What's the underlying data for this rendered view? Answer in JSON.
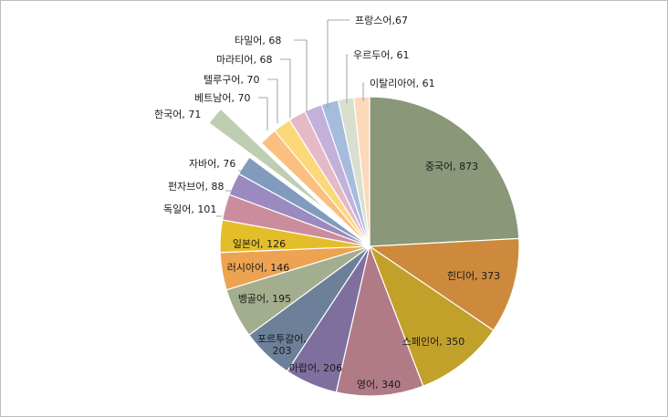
{
  "chart_data": {
    "type": "pie",
    "title": "",
    "slices": [
      {
        "label": "중국어, 873",
        "name": "중국어",
        "value": 873,
        "color": "#8a9778"
      },
      {
        "label": "힌디어, 373",
        "name": "힌디어",
        "value": 373,
        "color": "#cd8a3c"
      },
      {
        "label": "스페인어, 350",
        "name": "스페인어",
        "value": 350,
        "color": "#c2a12b"
      },
      {
        "label": "영어, 340",
        "name": "영어",
        "value": 340,
        "color": "#b07a87"
      },
      {
        "label": "아랍어, 206",
        "name": "아랍어",
        "value": 206,
        "color": "#7f6f9e"
      },
      {
        "label": "포르투갈어,\n203",
        "name": "포르투갈어",
        "value": 203,
        "color": "#6c809a"
      },
      {
        "label": "벵골어, 195",
        "name": "벵골어",
        "value": 195,
        "color": "#a3ae8e"
      },
      {
        "label": "러시아어, 146",
        "name": "러시아어",
        "value": 146,
        "color": "#eda351"
      },
      {
        "label": "일본어, 126",
        "name": "일본어",
        "value": 126,
        "color": "#e4be2a"
      },
      {
        "label": "독일어, 101",
        "name": "독일어",
        "value": 101,
        "color": "#cb8d9d"
      },
      {
        "label": "펀자브어, 88",
        "name": "펀자브어",
        "value": 88,
        "color": "#9b8ac0"
      },
      {
        "label": "자바어, 76",
        "name": "자바어",
        "value": 76,
        "color": "#819bbd"
      },
      {
        "label": "한국어, 71",
        "name": "한국어",
        "value": 71,
        "color": "#bfcdb3",
        "exploded": true
      },
      {
        "label": "베트남어, 70",
        "name": "베트남어",
        "value": 70,
        "color": "#fbbf80"
      },
      {
        "label": "텔루구어, 70",
        "name": "텔루구어",
        "value": 70,
        "color": "#fbd87a"
      },
      {
        "label": "마라티어, 68",
        "name": "마라티어",
        "value": 68,
        "color": "#e6b9c6"
      },
      {
        "label": "타밀어, 68",
        "name": "타밀어",
        "value": 68,
        "color": "#c3b1da"
      },
      {
        "label": "프랑스어,67",
        "name": "프랑스어",
        "value": 67,
        "color": "#a6bcde"
      },
      {
        "label": "우르두어, 61",
        "name": "우르두어",
        "value": 61,
        "color": "#d8dfcf"
      },
      {
        "label": "이탈리아어, 61",
        "name": "이탈리아어",
        "value": 61,
        "color": "#fcd9b9"
      }
    ]
  }
}
